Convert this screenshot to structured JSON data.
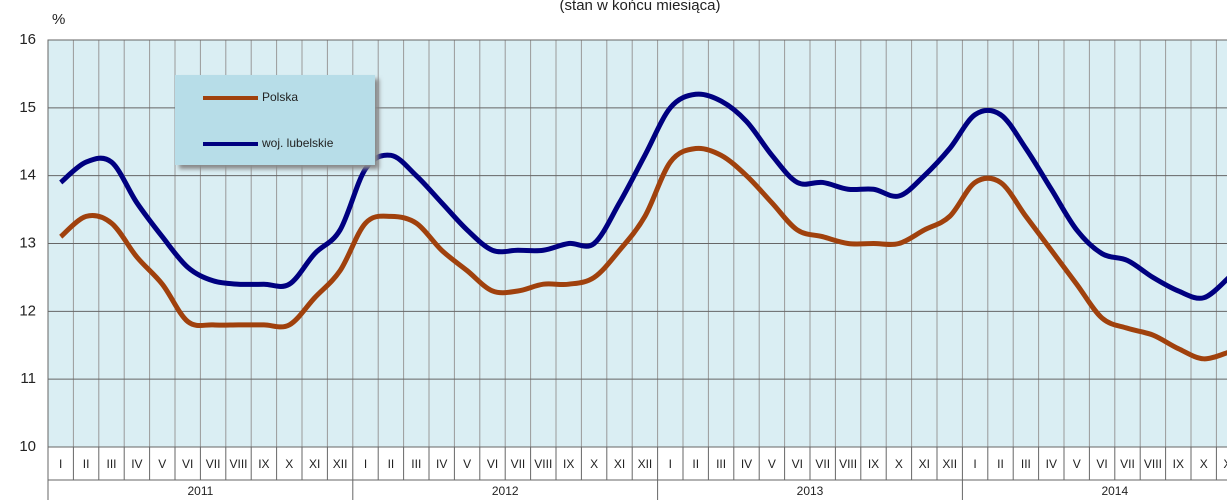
{
  "chart_data": {
    "type": "line",
    "subtitle": "(stan w końcu miesiąca)",
    "y_label": "%",
    "categories": [
      "I",
      "II",
      "III",
      "IV",
      "V",
      "VI",
      "VII",
      "VIII",
      "IX",
      "X",
      "XI",
      "XII",
      "I",
      "II",
      "III",
      "IV",
      "V",
      "VI",
      "VII",
      "VIII",
      "IX",
      "X",
      "XI",
      "XII",
      "I",
      "II",
      "III",
      "IV",
      "V",
      "VI",
      "VII",
      "VIII",
      "IX",
      "X",
      "XI",
      "XII",
      "I",
      "II",
      "III",
      "IV",
      "V",
      "VI",
      "VII",
      "VIII",
      "IX",
      "X",
      "XI"
    ],
    "years": [
      "2011",
      "2012",
      "2013",
      "2014"
    ],
    "series": [
      {
        "name": "Polska",
        "color": "#a0410d",
        "values": [
          13.1,
          13.4,
          13.3,
          12.8,
          12.4,
          11.85,
          11.8,
          11.8,
          11.8,
          11.8,
          12.2,
          12.6,
          13.3,
          13.4,
          13.3,
          12.9,
          12.6,
          12.3,
          12.3,
          12.4,
          12.4,
          12.5,
          12.9,
          13.4,
          14.2,
          14.4,
          14.3,
          14.0,
          13.6,
          13.2,
          13.1,
          13.0,
          13.0,
          13.0,
          13.2,
          13.4,
          13.9,
          13.9,
          13.4,
          12.9,
          12.4,
          11.9,
          11.75,
          11.65,
          11.45,
          11.3,
          11.4
        ]
      },
      {
        "name": "woj. lubelskie",
        "color": "#000080",
        "values": [
          13.9,
          14.2,
          14.2,
          13.6,
          13.1,
          12.65,
          12.45,
          12.4,
          12.4,
          12.4,
          12.85,
          13.2,
          14.1,
          14.3,
          14.0,
          13.6,
          13.2,
          12.9,
          12.9,
          12.9,
          13.0,
          13.0,
          13.6,
          14.3,
          15.0,
          15.2,
          15.1,
          14.8,
          14.3,
          13.9,
          13.9,
          13.8,
          13.8,
          13.7,
          14.0,
          14.4,
          14.9,
          14.9,
          14.4,
          13.8,
          13.2,
          12.85,
          12.75,
          12.5,
          12.3,
          12.2,
          12.5
        ]
      }
    ],
    "ylim": [
      10,
      16
    ],
    "yticks": [
      10,
      11,
      12,
      13,
      14,
      15,
      16
    ],
    "grid": true
  }
}
